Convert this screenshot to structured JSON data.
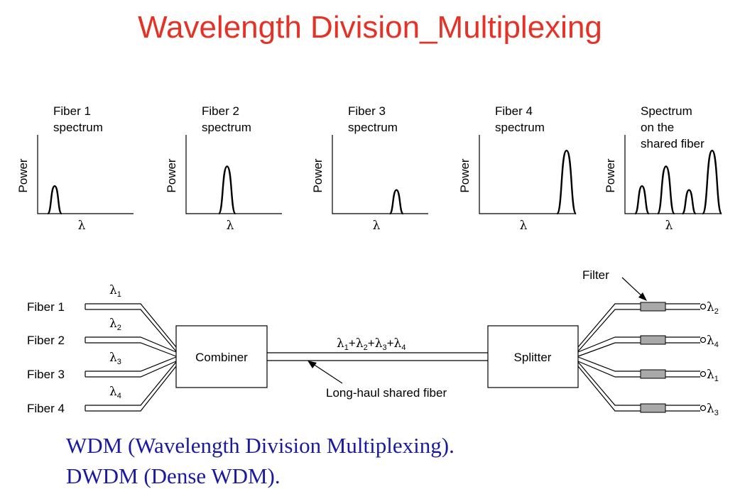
{
  "title": "Wavelength Division_Multiplexing",
  "spectra": [
    {
      "label1": "Fiber 1",
      "label2": "spectrum",
      "label3": "",
      "ylabel": "Power",
      "xlabel": "λ",
      "peaks": [
        {
          "pos": 0.16,
          "height": 0.35
        }
      ]
    },
    {
      "label1": "Fiber 2",
      "label2": "spectrum",
      "label3": "",
      "ylabel": "Power",
      "xlabel": "λ",
      "peaks": [
        {
          "pos": 0.43,
          "height": 0.6
        }
      ]
    },
    {
      "label1": "Fiber 3",
      "label2": "spectrum",
      "label3": "",
      "ylabel": "Power",
      "xlabel": "λ",
      "peaks": [
        {
          "pos": 0.69,
          "height": 0.3
        }
      ]
    },
    {
      "label1": "Fiber 4",
      "label2": "spectrum",
      "label3": "",
      "ylabel": "Power",
      "xlabel": "λ",
      "peaks": [
        {
          "pos": 0.95,
          "height": 0.8
        }
      ]
    },
    {
      "label1": "Spectrum",
      "label2": "on the",
      "label3": "shared fiber",
      "ylabel": "Power",
      "xlabel": "λ",
      "peaks": [
        {
          "pos": 0.16,
          "height": 0.35
        },
        {
          "pos": 0.43,
          "height": 0.6
        },
        {
          "pos": 0.69,
          "height": 0.3
        },
        {
          "pos": 0.95,
          "height": 0.8
        }
      ]
    }
  ],
  "inputs": [
    {
      "fiber": "Fiber 1",
      "lambda_sub": "1"
    },
    {
      "fiber": "Fiber 2",
      "lambda_sub": "2"
    },
    {
      "fiber": "Fiber 3",
      "lambda_sub": "3"
    },
    {
      "fiber": "Fiber 4",
      "lambda_sub": "4"
    }
  ],
  "combiner": "Combiner",
  "splitter": "Splitter",
  "shared_label": "λ1+λ2+λ3+λ4",
  "long_haul_label": "Long-haul shared fiber",
  "filter_label": "Filter",
  "outputs": [
    {
      "lambda_sub": "2"
    },
    {
      "lambda_sub": "4"
    },
    {
      "lambda_sub": "1"
    },
    {
      "lambda_sub": "3"
    }
  ],
  "lambda_symbol": "λ",
  "notes": [
    "WDM (Wavelength Division Multiplexing).",
    "DWDM (Dense WDM)."
  ],
  "colors": {
    "title": "#e53226",
    "notes": "#1a1aa0",
    "filter": "#a9a9a9"
  }
}
